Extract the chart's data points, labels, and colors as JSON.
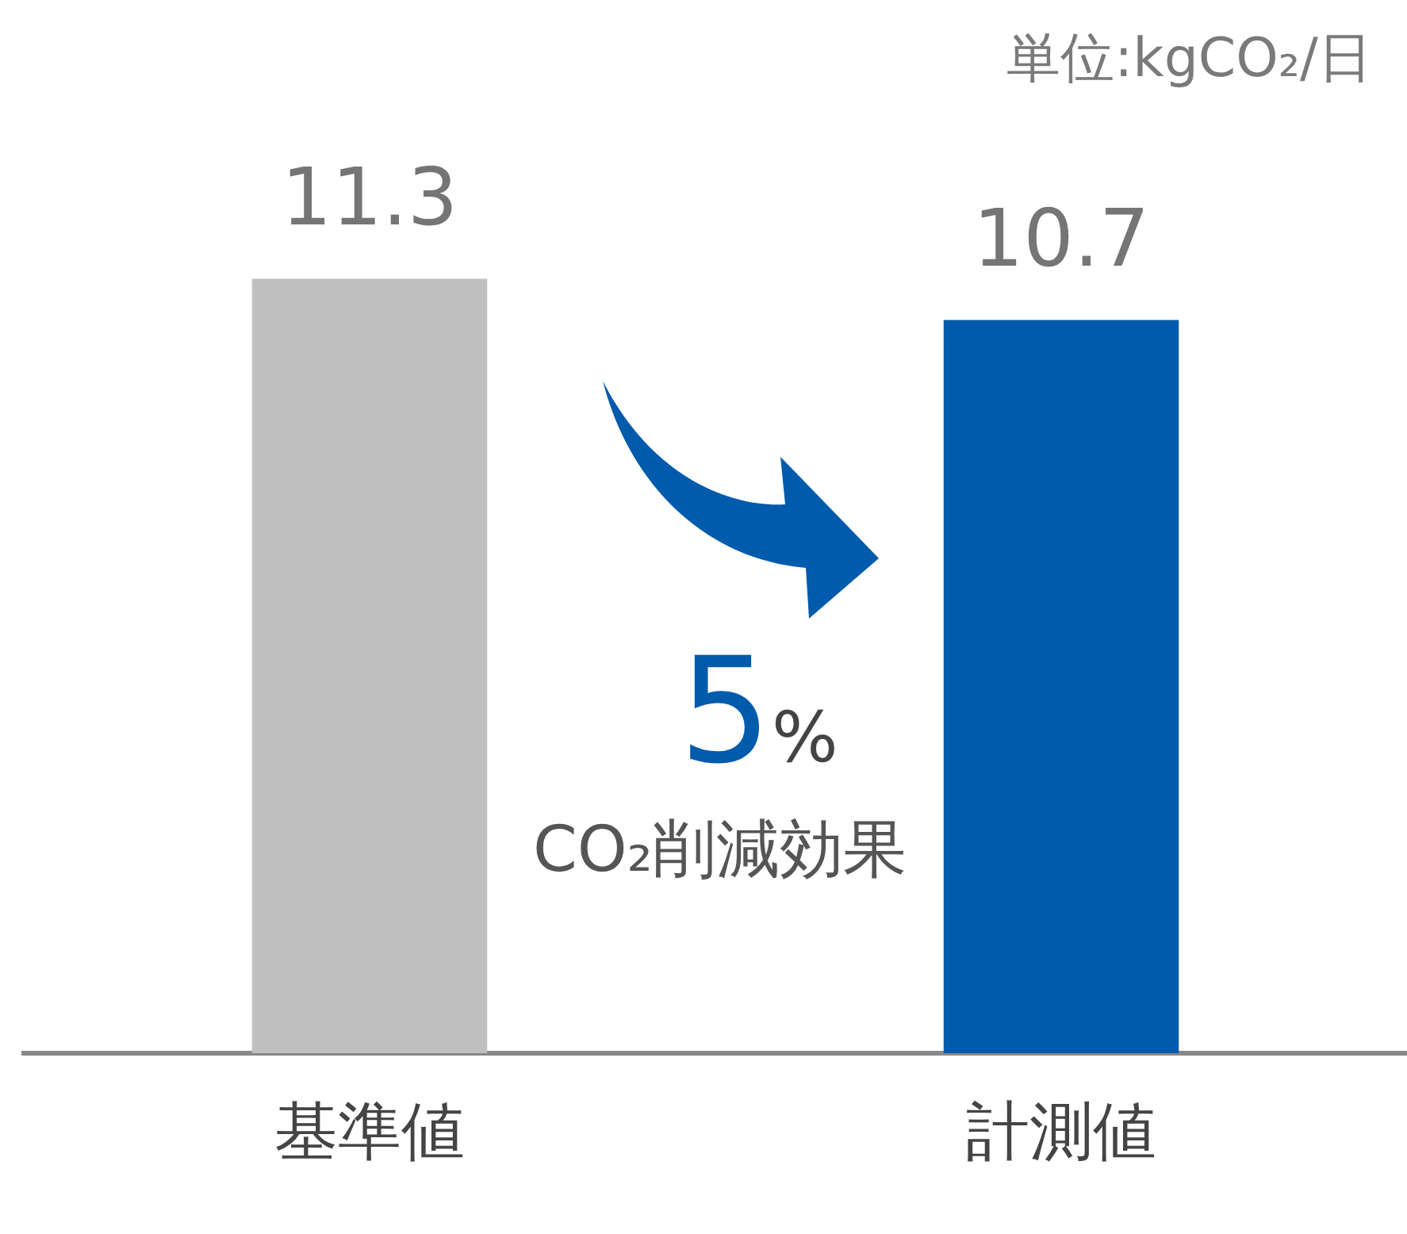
{
  "chart_data": {
    "type": "bar",
    "categories": [
      "基準値",
      "計測値"
    ],
    "values": [
      11.3,
      10.7
    ],
    "colors": [
      "#bfbfbf",
      "#005bac"
    ],
    "data_labels": true,
    "tick_labels": "x",
    "grid": false,
    "legend": false,
    "annotations": [
      "単位:kgCO₂/日",
      "5%",
      "CO₂削減効果"
    ]
  }
}
